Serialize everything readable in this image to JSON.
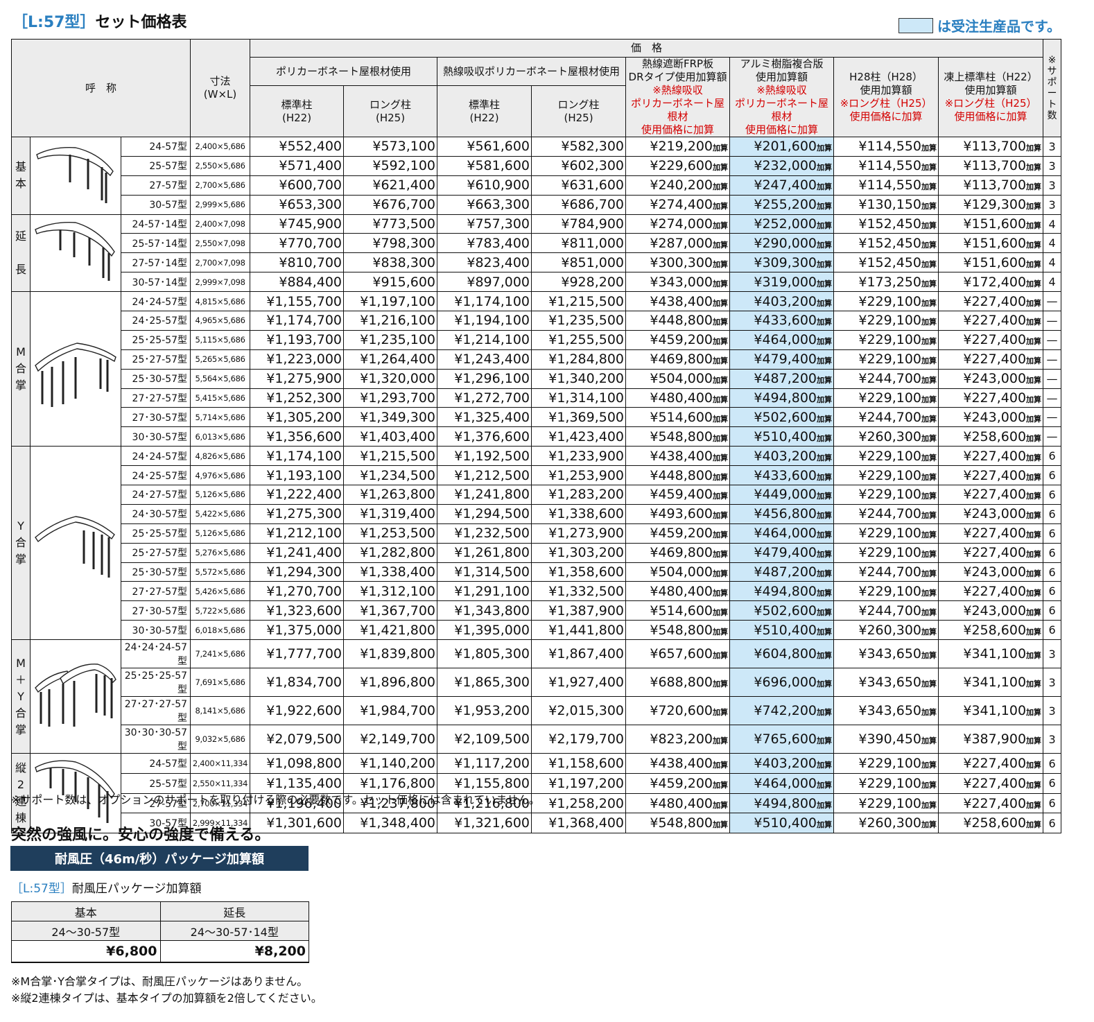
{
  "title": {
    "tag": "［L:57型］",
    "text": "セット価格表"
  },
  "legend": {
    "text": "は受注生産品です。"
  },
  "header": {
    "name": "呼　称",
    "size": "寸法\n(W×L)",
    "price": "価　格",
    "support": "※\nサ\nポ\nー\nト\n数",
    "group_poly": "ポリカーボネート屋根材使用",
    "group_heat": "熱線吸収ポリカーボネート屋根材使用",
    "std": "標準柱\n(H22)",
    "long": "ロング柱\n(H25)",
    "frp": "熱線遮断FRP板\nDRタイプ使用加算額",
    "frp_red": "※熱線吸収\nポリカーボネート屋根材\n使用価格に加算",
    "alu": "アルミ樹脂複合版\n使用加算額",
    "alu_red": "※熱線吸収\nポリカーボネート屋根材\n使用価格に加算",
    "h28": "H28柱（H28）\n使用加算額",
    "h28_red": "※ロング柱（H25）\n使用価格に加算",
    "frost": "凍上標準柱（H22）\n使用加算額",
    "frost_red": "※ロング柱（H25）\n使用価格に加算"
  },
  "kasan": "加算",
  "sections": [
    {
      "label": "基\n本",
      "icon": "carport-basic-icon",
      "rows": [
        [
          "24-57型",
          "2,400×5,686",
          "¥552,400",
          "¥573,100",
          "¥561,600",
          "¥582,300",
          "¥219,200",
          "¥201,600",
          "¥114,550",
          "¥113,700",
          "3"
        ],
        [
          "25-57型",
          "2,550×5,686",
          "¥571,400",
          "¥592,100",
          "¥581,600",
          "¥602,300",
          "¥229,600",
          "¥232,000",
          "¥114,550",
          "¥113,700",
          "3"
        ],
        [
          "27-57型",
          "2,700×5,686",
          "¥600,700",
          "¥621,400",
          "¥610,900",
          "¥631,600",
          "¥240,200",
          "¥247,400",
          "¥114,550",
          "¥113,700",
          "3"
        ],
        [
          "30-57型",
          "2,999×5,686",
          "¥653,300",
          "¥676,700",
          "¥663,300",
          "¥686,700",
          "¥274,400",
          "¥255,200",
          "¥130,150",
          "¥129,300",
          "3"
        ]
      ]
    },
    {
      "label": "延\n\n長",
      "icon": "carport-extended-icon",
      "rows": [
        [
          "24-57･14型",
          "2,400×7,098",
          "¥745,900",
          "¥773,500",
          "¥757,300",
          "¥784,900",
          "¥274,000",
          "¥252,000",
          "¥152,450",
          "¥151,600",
          "4"
        ],
        [
          "25-57･14型",
          "2,550×7,098",
          "¥770,700",
          "¥798,300",
          "¥783,400",
          "¥811,000",
          "¥287,000",
          "¥290,000",
          "¥152,450",
          "¥151,600",
          "4"
        ],
        [
          "27-57･14型",
          "2,700×7,098",
          "¥810,700",
          "¥838,300",
          "¥823,400",
          "¥851,000",
          "¥300,300",
          "¥309,300",
          "¥152,450",
          "¥151,600",
          "4"
        ],
        [
          "30-57･14型",
          "2,999×7,098",
          "¥884,400",
          "¥915,600",
          "¥897,000",
          "¥928,200",
          "¥343,000",
          "¥319,000",
          "¥173,250",
          "¥172,400",
          "4"
        ]
      ]
    },
    {
      "label": "M\n合\n掌",
      "icon": "carport-m-gassho-icon",
      "rows": [
        [
          "24･24-57型",
          "4,815×5,686",
          "¥1,155,700",
          "¥1,197,100",
          "¥1,174,100",
          "¥1,215,500",
          "¥438,400",
          "¥403,200",
          "¥229,100",
          "¥227,400",
          "—"
        ],
        [
          "24･25-57型",
          "4,965×5,686",
          "¥1,174,700",
          "¥1,216,100",
          "¥1,194,100",
          "¥1,235,500",
          "¥448,800",
          "¥433,600",
          "¥229,100",
          "¥227,400",
          "—"
        ],
        [
          "25･25-57型",
          "5,115×5,686",
          "¥1,193,700",
          "¥1,235,100",
          "¥1,214,100",
          "¥1,255,500",
          "¥459,200",
          "¥464,000",
          "¥229,100",
          "¥227,400",
          "—"
        ],
        [
          "25･27-57型",
          "5,265×5,686",
          "¥1,223,000",
          "¥1,264,400",
          "¥1,243,400",
          "¥1,284,800",
          "¥469,800",
          "¥479,400",
          "¥229,100",
          "¥227,400",
          "—"
        ],
        [
          "25･30-57型",
          "5,564×5,686",
          "¥1,275,900",
          "¥1,320,000",
          "¥1,296,100",
          "¥1,340,200",
          "¥504,000",
          "¥487,200",
          "¥244,700",
          "¥243,000",
          "—"
        ],
        [
          "27･27-57型",
          "5,415×5,686",
          "¥1,252,300",
          "¥1,293,700",
          "¥1,272,700",
          "¥1,314,100",
          "¥480,400",
          "¥494,800",
          "¥229,100",
          "¥227,400",
          "—"
        ],
        [
          "27･30-57型",
          "5,714×5,686",
          "¥1,305,200",
          "¥1,349,300",
          "¥1,325,400",
          "¥1,369,500",
          "¥514,600",
          "¥502,600",
          "¥244,700",
          "¥243,000",
          "—"
        ],
        [
          "30･30-57型",
          "6,013×5,686",
          "¥1,356,600",
          "¥1,403,400",
          "¥1,376,600",
          "¥1,423,400",
          "¥548,800",
          "¥510,400",
          "¥260,300",
          "¥258,600",
          "—"
        ]
      ]
    },
    {
      "label": "Y\n合\n掌",
      "icon": "carport-y-gassho-icon",
      "rows": [
        [
          "24･24-57型",
          "4,826×5,686",
          "¥1,174,100",
          "¥1,215,500",
          "¥1,192,500",
          "¥1,233,900",
          "¥438,400",
          "¥403,200",
          "¥229,100",
          "¥227,400",
          "6"
        ],
        [
          "24･25-57型",
          "4,976×5,686",
          "¥1,193,100",
          "¥1,234,500",
          "¥1,212,500",
          "¥1,253,900",
          "¥448,800",
          "¥433,600",
          "¥229,100",
          "¥227,400",
          "6"
        ],
        [
          "24･27-57型",
          "5,126×5,686",
          "¥1,222,400",
          "¥1,263,800",
          "¥1,241,800",
          "¥1,283,200",
          "¥459,400",
          "¥449,000",
          "¥229,100",
          "¥227,400",
          "6"
        ],
        [
          "24･30-57型",
          "5,422×5,686",
          "¥1,275,300",
          "¥1,319,400",
          "¥1,294,500",
          "¥1,338,600",
          "¥493,600",
          "¥456,800",
          "¥244,700",
          "¥243,000",
          "6"
        ],
        [
          "25･25-57型",
          "5,126×5,686",
          "¥1,212,100",
          "¥1,253,500",
          "¥1,232,500",
          "¥1,273,900",
          "¥459,200",
          "¥464,000",
          "¥229,100",
          "¥227,400",
          "6"
        ],
        [
          "25･27-57型",
          "5,276×5,686",
          "¥1,241,400",
          "¥1,282,800",
          "¥1,261,800",
          "¥1,303,200",
          "¥469,800",
          "¥479,400",
          "¥229,100",
          "¥227,400",
          "6"
        ],
        [
          "25･30-57型",
          "5,572×5,686",
          "¥1,294,300",
          "¥1,338,400",
          "¥1,314,500",
          "¥1,358,600",
          "¥504,000",
          "¥487,200",
          "¥244,700",
          "¥243,000",
          "6"
        ],
        [
          "27･27-57型",
          "5,426×5,686",
          "¥1,270,700",
          "¥1,312,100",
          "¥1,291,100",
          "¥1,332,500",
          "¥480,400",
          "¥494,800",
          "¥229,100",
          "¥227,400",
          "6"
        ],
        [
          "27･30-57型",
          "5,722×5,686",
          "¥1,323,600",
          "¥1,367,700",
          "¥1,343,800",
          "¥1,387,900",
          "¥514,600",
          "¥502,600",
          "¥244,700",
          "¥243,000",
          "6"
        ],
        [
          "30･30-57型",
          "6,018×5,686",
          "¥1,375,000",
          "¥1,421,800",
          "¥1,395,000",
          "¥1,441,800",
          "¥548,800",
          "¥510,400",
          "¥260,300",
          "¥258,600",
          "6"
        ]
      ]
    },
    {
      "label": "M\n＋\nY\n合\n掌",
      "icon": "carport-m-y-gassho-icon",
      "rows": [
        [
          "24･24･24-57型",
          "7,241×5,686",
          "¥1,777,700",
          "¥1,839,800",
          "¥1,805,300",
          "¥1,867,400",
          "¥657,600",
          "¥604,800",
          "¥343,650",
          "¥341,100",
          "3"
        ],
        [
          "25･25･25-57型",
          "7,691×5,686",
          "¥1,834,700",
          "¥1,896,800",
          "¥1,865,300",
          "¥1,927,400",
          "¥688,800",
          "¥696,000",
          "¥343,650",
          "¥341,100",
          "3"
        ],
        [
          "27･27･27-57型",
          "8,141×5,686",
          "¥1,922,600",
          "¥1,984,700",
          "¥1,953,200",
          "¥2,015,300",
          "¥720,600",
          "¥742,200",
          "¥343,650",
          "¥341,100",
          "3"
        ],
        [
          "30･30･30-57型",
          "9,032×5,686",
          "¥2,079,500",
          "¥2,149,700",
          "¥2,109,500",
          "¥2,179,700",
          "¥823,200",
          "¥765,600",
          "¥390,450",
          "¥387,900",
          "3"
        ]
      ]
    },
    {
      "label": "縦\n2\n連\n棟",
      "icon": "carport-tandem-icon",
      "rows": [
        [
          "24-57型",
          "2,400×11,334",
          "¥1,098,800",
          "¥1,140,200",
          "¥1,117,200",
          "¥1,158,600",
          "¥438,400",
          "¥403,200",
          "¥229,100",
          "¥227,400",
          "6"
        ],
        [
          "25-57型",
          "2,550×11,334",
          "¥1,135,400",
          "¥1,176,800",
          "¥1,155,800",
          "¥1,197,200",
          "¥459,200",
          "¥464,000",
          "¥229,100",
          "¥227,400",
          "6"
        ],
        [
          "27-57型",
          "2,700×11,334",
          "¥1,196,400",
          "¥1,237,800",
          "¥1,216,800",
          "¥1,258,200",
          "¥480,400",
          "¥494,800",
          "¥229,100",
          "¥227,400",
          "6"
        ],
        [
          "30-57型",
          "2,999×11,334",
          "¥1,301,600",
          "¥1,348,400",
          "¥1,321,600",
          "¥1,368,400",
          "¥548,800",
          "¥510,400",
          "¥260,300",
          "¥258,600",
          "6"
        ]
      ]
    }
  ],
  "note1": "※サポート数は、オプションのサポートを取り付ける際の必要数です。セット価格には含まれていません。",
  "head2": "突然の強風に。安心の強度で備える。",
  "banner": "耐風圧（46m/秒）パッケージ加算額",
  "sub2": {
    "tag": "［L:57型］",
    "text": "耐風圧パッケージ加算額"
  },
  "wind": {
    "h1": "基本",
    "h2": "延長",
    "m1": "24〜30-57型",
    "m2": "24〜30-57･14型",
    "p1": "¥6,800",
    "p2": "¥8,200"
  },
  "note2a": "※M合掌･Y合掌タイプは、耐風圧パッケージはありません。",
  "note2b": "※縦2連棟タイプは、基本タイプの加算額を2倍してください。"
}
